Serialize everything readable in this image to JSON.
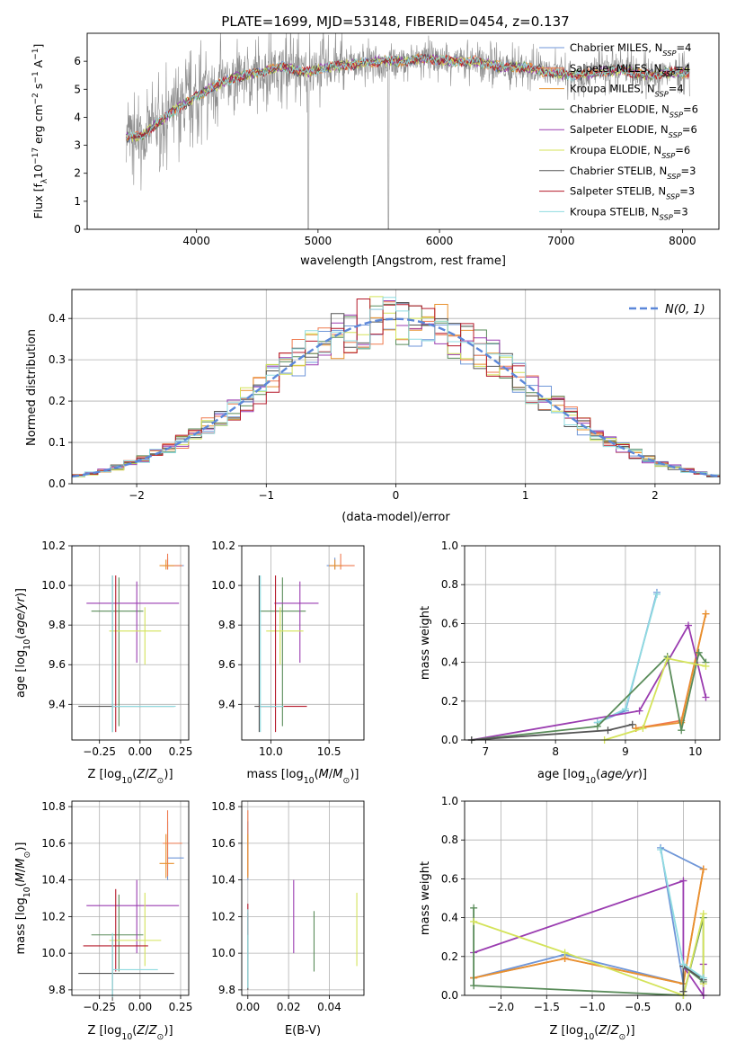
{
  "figure": {
    "title": "PLATE=1699, MJD=53148, FIBERID=0454, z=0.137"
  },
  "colors": {
    "chabrier_miles": "#6f96d8",
    "salpeter_miles": "#ef7a4f",
    "kroupa_miles": "#e8912e",
    "chabrier_elodie": "#5a8c5a",
    "salpeter_elodie": "#9a3cb0",
    "kroupa_elodie": "#d4e35a",
    "chabrier_stelib": "#555555",
    "salpeter_stelib": "#b5192a",
    "kroupa_stelib": "#8fdbe0",
    "data_grey": "#8c8c8c",
    "normal_curve": "#5b87d9"
  },
  "chart_data": [
    {
      "id": "spectrum",
      "type": "line",
      "title": "PLATE=1699, MJD=53148, FIBERID=0454, z=0.137",
      "xlabel": "wavelength [Angstrom, rest frame]",
      "ylabel": "Flux [f_λ 10^-17 erg cm^-2 s^-1 A^-1]",
      "xlim": [
        3100,
        8300
      ],
      "ylim": [
        0,
        7
      ],
      "xticks": [
        4000,
        5000,
        6000,
        7000,
        8000
      ],
      "yticks": [
        0,
        1,
        2,
        3,
        4,
        5,
        6
      ],
      "grid": false,
      "legend_position": "top-right",
      "series": [
        {
          "name": "Chabrier MILES, N_SSP=4",
          "color_key": "chabrier_miles"
        },
        {
          "name": "Salpeter MILES, N_SSP=4",
          "color_key": "salpeter_miles"
        },
        {
          "name": "Kroupa MILES, N_SSP=4",
          "color_key": "kroupa_miles"
        },
        {
          "name": "Chabrier ELODIE, N_SSP=6",
          "color_key": "chabrier_elodie"
        },
        {
          "name": "Salpeter ELODIE, N_SSP=6",
          "color_key": "salpeter_elodie"
        },
        {
          "name": "Kroupa ELODIE, N_SSP=6",
          "color_key": "kroupa_elodie"
        },
        {
          "name": "Chabrier STELIB, N_SSP=3",
          "color_key": "chabrier_stelib"
        },
        {
          "name": "Salpeter STELIB, N_SSP=3",
          "color_key": "salpeter_stelib"
        },
        {
          "name": "Kroupa STELIB, N_SSP=3",
          "color_key": "kroupa_stelib"
        }
      ],
      "data_x_range": [
        3420,
        8060
      ],
      "model_envelope": {
        "x": [
          3420,
          3550,
          3650,
          3800,
          3950,
          4100,
          4300,
          4500,
          4700,
          4900,
          5100,
          5300,
          5500,
          5700,
          5900,
          6100,
          6300,
          6500,
          6700,
          6900,
          7100,
          7300,
          7500,
          7700,
          7900,
          8060
        ],
        "y": [
          3.3,
          3.3,
          3.7,
          4.2,
          4.6,
          5.0,
          5.4,
          5.6,
          5.8,
          5.6,
          5.8,
          5.9,
          6.0,
          6.0,
          6.1,
          6.0,
          6.0,
          5.8,
          5.8,
          5.6,
          5.5,
          5.6,
          5.7,
          5.5,
          5.6,
          5.6
        ]
      }
    },
    {
      "id": "residuals",
      "type": "line",
      "xlabel": "(data-model)/error",
      "ylabel": "Normed distribution",
      "xlim": [
        -2.5,
        2.5
      ],
      "ylim": [
        0,
        0.47
      ],
      "xticks": [
        -2,
        -1,
        0,
        1,
        2
      ],
      "yticks": [
        0.0,
        0.1,
        0.2,
        0.3,
        0.4
      ],
      "grid": true,
      "legend_position": "top-right",
      "legend_label": "N(0, 1)",
      "bin_width": 0.1,
      "histogram_approx": "normal with per-model deviations"
    },
    {
      "id": "age_vs_Z",
      "type": "scatter",
      "xlabel": "Z [log10(Z/Z⊙)]",
      "ylabel": "age [log10(age/yr)]",
      "xlim": [
        -0.42,
        0.3
      ],
      "ylim": [
        9.22,
        10.2
      ],
      "xticks": [
        -0.25,
        0.0,
        0.25
      ],
      "yticks": [
        9.4,
        9.6,
        9.8,
        10.0,
        10.2
      ],
      "grid": true,
      "points": [
        {
          "model": "chabrier_miles",
          "x": 0.17,
          "xerr": [
            0.0,
            0.1
          ],
          "y": 10.1,
          "yerr": [
            0.02,
            0.04
          ]
        },
        {
          "model": "salpeter_miles",
          "x": 0.17,
          "xerr": [
            0.03,
            0.09
          ],
          "y": 10.1,
          "yerr": [
            0.02,
            0.06
          ]
        },
        {
          "model": "kroupa_miles",
          "x": 0.16,
          "xerr": [
            0.04,
            0.05
          ],
          "y": 10.1,
          "yerr": [
            0.02,
            0.03
          ]
        },
        {
          "model": "chabrier_elodie",
          "x": -0.13,
          "xerr": [
            0.17,
            0.15
          ],
          "y": 9.87,
          "yerr": [
            0.58,
            0.17
          ]
        },
        {
          "model": "salpeter_elodie",
          "x": -0.02,
          "xerr": [
            0.31,
            0.26
          ],
          "y": 9.91,
          "yerr": [
            0.3,
            0.11
          ]
        },
        {
          "model": "kroupa_elodie",
          "x": 0.03,
          "xerr": [
            0.22,
            0.1
          ],
          "y": 9.77,
          "yerr": [
            0.17,
            0.12
          ]
        },
        {
          "model": "chabrier_stelib",
          "x": -0.17,
          "xerr": [
            0.21,
            0.38
          ],
          "y": 9.39,
          "yerr": [
            0.13,
            0.66
          ]
        },
        {
          "model": "salpeter_stelib",
          "x": -0.15,
          "xerr": [
            0.02,
            0.0
          ],
          "y": 9.39,
          "yerr": [
            0.13,
            0.66
          ]
        },
        {
          "model": "kroupa_stelib",
          "x": -0.17,
          "xerr": [
            0.0,
            0.39
          ],
          "y": 9.39,
          "yerr": [
            0.13,
            0.66
          ]
        }
      ]
    },
    {
      "id": "age_vs_mass",
      "type": "scatter",
      "xlabel": "mass [log10(M/M⊙)]",
      "ylabel": "",
      "xlim": [
        9.75,
        10.8
      ],
      "ylim": [
        9.22,
        10.2
      ],
      "xticks": [
        10.0,
        10.5
      ],
      "yticks": [
        9.4,
        9.6,
        9.8,
        10.0,
        10.2
      ],
      "grid": true,
      "points": [
        {
          "model": "chabrier_miles",
          "x": 10.55,
          "xerr": [
            0.07,
            0.07
          ],
          "y": 10.1,
          "yerr": [
            0.02,
            0.04
          ]
        },
        {
          "model": "salpeter_miles",
          "x": 10.6,
          "xerr": [
            0.1,
            0.12
          ],
          "y": 10.1,
          "yerr": [
            0.02,
            0.06
          ]
        },
        {
          "model": "kroupa_miles",
          "x": 10.55,
          "xerr": [
            0.05,
            0.06
          ],
          "y": 10.1,
          "yerr": [
            0.02,
            0.03
          ]
        },
        {
          "model": "chabrier_elodie",
          "x": 10.1,
          "xerr": [
            0.2,
            0.2
          ],
          "y": 9.87,
          "yerr": [
            0.58,
            0.17
          ]
        },
        {
          "model": "salpeter_elodie",
          "x": 10.25,
          "xerr": [
            0.22,
            0.16
          ],
          "y": 9.91,
          "yerr": [
            0.3,
            0.11
          ]
        },
        {
          "model": "kroupa_elodie",
          "x": 10.08,
          "xerr": [
            0.12,
            0.2
          ],
          "y": 9.77,
          "yerr": [
            0.17,
            0.12
          ]
        },
        {
          "model": "chabrier_stelib",
          "x": 9.9,
          "xerr": [
            0.04,
            0.14
          ],
          "y": 9.39,
          "yerr": [
            0.13,
            0.66
          ]
        },
        {
          "model": "salpeter_stelib",
          "x": 10.04,
          "xerr": [
            0.14,
            0.27
          ],
          "y": 9.39,
          "yerr": [
            0.13,
            0.66
          ]
        },
        {
          "model": "kroupa_stelib",
          "x": 9.91,
          "xerr": [
            0.0,
            0.2
          ],
          "y": 9.39,
          "yerr": [
            0.13,
            0.66
          ]
        }
      ]
    },
    {
      "id": "weight_vs_age",
      "type": "line",
      "xlabel": "age [log10(age/yr)]",
      "ylabel": "mass weight",
      "xlim": [
        6.7,
        10.35
      ],
      "ylim": [
        0,
        1.0
      ],
      "xticks": [
        7,
        8,
        9,
        10
      ],
      "yticks": [
        0.0,
        0.2,
        0.4,
        0.6,
        0.8,
        1.0
      ],
      "grid": true,
      "series": [
        {
          "model": "chabrier_miles",
          "x": [
            8.6,
            9.0,
            9.45
          ],
          "y": [
            0.09,
            0.15,
            0.76
          ]
        },
        {
          "model": "kroupa_stelib",
          "x": [
            8.6,
            9.0,
            9.45
          ],
          "y": [
            0.09,
            0.16,
            0.75
          ]
        },
        {
          "model": "salpeter_miles",
          "x": [
            9.15,
            9.8,
            10.15
          ],
          "y": [
            0.06,
            0.1,
            0.65
          ]
        },
        {
          "model": "kroupa_miles",
          "x": [
            9.15,
            9.8,
            10.15
          ],
          "y": [
            0.06,
            0.09,
            0.65
          ]
        },
        {
          "model": "salpeter_elodie",
          "x": [
            6.8,
            9.2,
            9.9,
            10.15
          ],
          "y": [
            0.0,
            0.15,
            0.59,
            0.22
          ]
        },
        {
          "model": "chabrier_elodie",
          "x": [
            6.8,
            8.6,
            9.6,
            9.8,
            10.05,
            10.15
          ],
          "y": [
            0.0,
            0.07,
            0.43,
            0.05,
            0.45,
            0.4
          ]
        },
        {
          "model": "kroupa_elodie",
          "x": [
            8.7,
            9.25,
            9.6,
            10.15
          ],
          "y": [
            0.0,
            0.06,
            0.42,
            0.38
          ]
        },
        {
          "model": "chabrier_stelib",
          "x": [
            6.8,
            8.75,
            9.1
          ],
          "y": [
            0.0,
            0.05,
            0.08
          ]
        }
      ]
    },
    {
      "id": "mass_vs_Z",
      "type": "scatter",
      "xlabel": "Z [log10(Z/Z⊙)]",
      "ylabel": "mass [log10(M/M⊙)]",
      "xlim": [
        -0.42,
        0.3
      ],
      "ylim": [
        9.77,
        10.83
      ],
      "xticks": [
        -0.25,
        0.0,
        0.25
      ],
      "yticks": [
        9.8,
        10.0,
        10.2,
        10.4,
        10.6,
        10.8
      ],
      "grid": true,
      "points": [
        {
          "model": "chabrier_miles",
          "x": 0.17,
          "xerr": [
            0.0,
            0.1
          ],
          "y": 10.52,
          "yerr": [
            0.12,
            0.2
          ]
        },
        {
          "model": "salpeter_miles",
          "x": 0.17,
          "xerr": [
            0.03,
            0.09
          ],
          "y": 10.6,
          "yerr": [
            0.18,
            0.18
          ]
        },
        {
          "model": "kroupa_miles",
          "x": 0.16,
          "xerr": [
            0.04,
            0.05
          ],
          "y": 10.49,
          "yerr": [
            0.08,
            0.16
          ]
        },
        {
          "model": "chabrier_elodie",
          "x": -0.13,
          "xerr": [
            0.17,
            0.15
          ],
          "y": 10.1,
          "yerr": [
            0.2,
            0.22
          ]
        },
        {
          "model": "salpeter_elodie",
          "x": -0.02,
          "xerr": [
            0.31,
            0.26
          ],
          "y": 10.26,
          "yerr": [
            0.26,
            0.14
          ]
        },
        {
          "model": "kroupa_elodie",
          "x": 0.03,
          "xerr": [
            0.22,
            0.1
          ],
          "y": 10.07,
          "yerr": [
            0.14,
            0.26
          ]
        },
        {
          "model": "chabrier_stelib",
          "x": -0.17,
          "xerr": [
            0.21,
            0.38
          ],
          "y": 9.89,
          "yerr": [
            0.15,
            0.2
          ]
        },
        {
          "model": "salpeter_stelib",
          "x": -0.15,
          "xerr": [
            0.2,
            0.2
          ],
          "y": 10.04,
          "yerr": [
            0.14,
            0.31
          ]
        },
        {
          "model": "kroupa_stelib",
          "x": -0.17,
          "xerr": [
            0.0,
            0.28
          ],
          "y": 9.91,
          "yerr": [
            0.15,
            0.2
          ]
        }
      ]
    },
    {
      "id": "mass_vs_ebv",
      "type": "scatter",
      "xlabel": "E(B-V)",
      "ylabel": "",
      "xlim": [
        -0.003,
        0.057
      ],
      "ylim": [
        9.77,
        10.83
      ],
      "xticks": [
        0.0,
        0.02,
        0.04
      ],
      "yticks": [
        9.8,
        10.0,
        10.2,
        10.4,
        10.6,
        10.8
      ],
      "grid": true,
      "points": [
        {
          "model": "chabrier_miles",
          "x": 0.0,
          "y": 10.52,
          "yerr": [
            0.12,
            0.2
          ]
        },
        {
          "model": "salpeter_miles",
          "x": 0.0,
          "y": 10.6,
          "yerr": [
            0.18,
            0.18
          ]
        },
        {
          "model": "kroupa_miles",
          "x": 0.0,
          "y": 10.49,
          "yerr": [
            0.08,
            0.16
          ]
        },
        {
          "model": "chabrier_elodie",
          "x": 0.0325,
          "y": 10.1,
          "yerr": [
            0.2,
            0.13
          ]
        },
        {
          "model": "salpeter_elodie",
          "x": 0.0225,
          "y": 10.2,
          "yerr": [
            0.2,
            0.2
          ]
        },
        {
          "model": "kroupa_elodie",
          "x": 0.0535,
          "y": 10.13,
          "yerr": [
            0.2,
            0.2
          ]
        },
        {
          "model": "chabrier_stelib",
          "x": 0.0,
          "y": 9.89,
          "yerr": [
            0.09,
            0.33
          ]
        },
        {
          "model": "salpeter_stelib",
          "x": 0.0,
          "y": 10.2,
          "yerr": [
            0.1,
            0.07
          ]
        },
        {
          "model": "kroupa_stelib",
          "x": 0.0,
          "y": 9.91,
          "yerr": [
            0.1,
            0.33
          ]
        }
      ]
    },
    {
      "id": "weight_vs_Z",
      "type": "line",
      "xlabel": "Z [log10(Z/Z⊙)]",
      "ylabel": "mass weight",
      "xlim": [
        -2.4,
        0.4
      ],
      "ylim": [
        0,
        1.0
      ],
      "xticks": [
        -2.0,
        -1.5,
        -1.0,
        -0.5,
        0.0
      ],
      "yticks": [
        0.0,
        0.2,
        0.4,
        0.6,
        0.8,
        1.0
      ],
      "grid": true,
      "series": [
        {
          "model": "chabrier_miles",
          "x": [
            -2.3,
            -1.3,
            0.0,
            -0.25,
            0.22
          ],
          "y": [
            0.09,
            0.21,
            0.06,
            0.76,
            0.65
          ]
        },
        {
          "model": "salpeter_miles",
          "x": [
            -2.3,
            -1.3,
            0.0,
            0.22
          ],
          "y": [
            0.09,
            0.19,
            0.06,
            0.65
          ]
        },
        {
          "model": "kroupa_miles",
          "x": [
            -2.3,
            -1.3,
            0.0,
            0.22
          ],
          "y": [
            0.09,
            0.19,
            0.06,
            0.65
          ]
        },
        {
          "model": "salpeter_elodie",
          "x": [
            -2.3,
            0.0,
            0.0,
            0.22,
            0.22
          ],
          "y": [
            0.22,
            0.59,
            0.15,
            0.0,
            0.16
          ]
        },
        {
          "model": "chabrier_elodie",
          "x": [
            -2.3,
            -2.3,
            0.0,
            0.22,
            0.22,
            0.0
          ],
          "y": [
            0.45,
            0.05,
            0.0,
            0.4,
            0.07,
            0.15
          ]
        },
        {
          "model": "kroupa_elodie",
          "x": [
            -2.3,
            -1.3,
            0.0,
            0.22,
            0.22
          ],
          "y": [
            0.38,
            0.22,
            0.0,
            0.42,
            0.06
          ]
        },
        {
          "model": "chabrier_stelib",
          "x": [
            0.0,
            0.0,
            0.22
          ],
          "y": [
            0.02,
            0.15,
            0.08
          ]
        },
        {
          "model": "kroupa_stelib",
          "x": [
            -0.25,
            0.0,
            0.22
          ],
          "y": [
            0.75,
            0.16,
            0.09
          ]
        }
      ]
    }
  ]
}
